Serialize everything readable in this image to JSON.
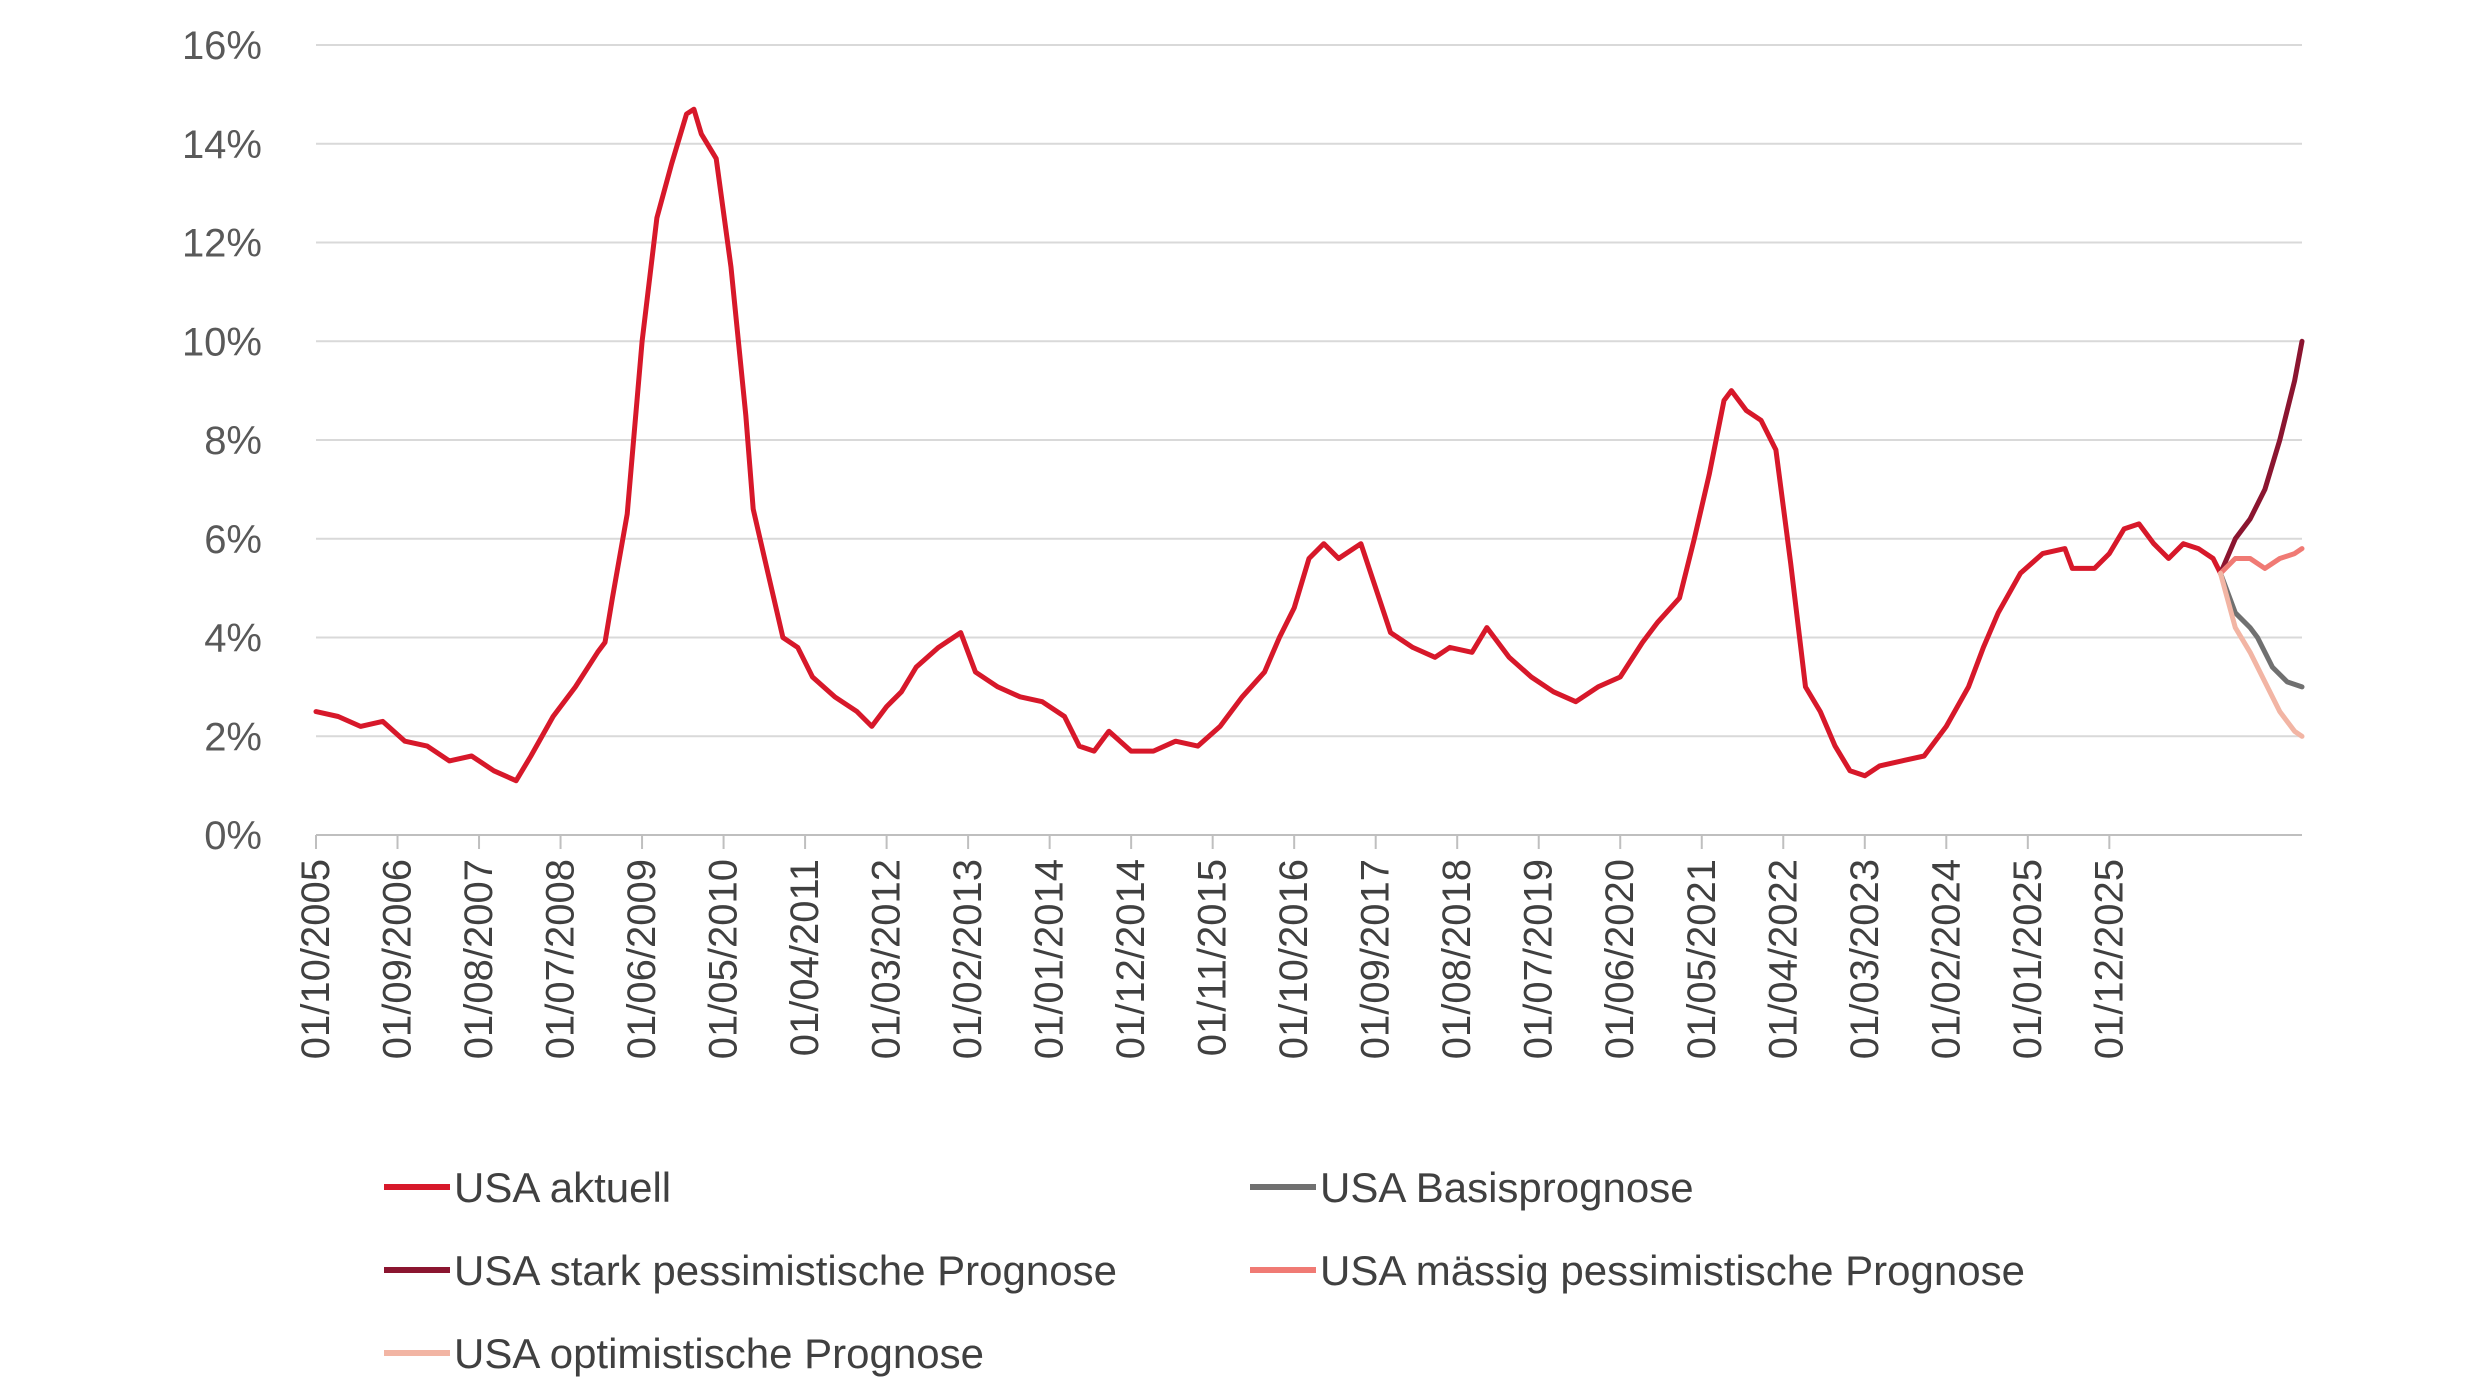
{
  "chart_data": {
    "type": "line",
    "title": "",
    "xlabel": "",
    "ylabel": "",
    "ylim": [
      0,
      16
    ],
    "yticks": [
      "0%",
      "2%",
      "4%",
      "6%",
      "8%",
      "10%",
      "12%",
      "14%",
      "16%"
    ],
    "grid": "horizontal",
    "legend_position": "bottom",
    "xticks": [
      "01/10/2005",
      "01/09/2006",
      "01/08/2007",
      "01/07/2008",
      "01/06/2009",
      "01/05/2010",
      "01/04/2011",
      "01/03/2012",
      "01/02/2013",
      "01/01/2014",
      "01/12/2014",
      "01/11/2015",
      "01/10/2016",
      "01/09/2017",
      "01/08/2018",
      "01/07/2019",
      "01/06/2020",
      "01/05/2021",
      "01/04/2022",
      "01/03/2023",
      "01/02/2024",
      "01/01/2025",
      "01/12/2025"
    ],
    "x_unit": "month",
    "x_start": "2005-10",
    "x_end": "2028-02",
    "series": [
      {
        "name": "USA aktuell",
        "color": "#d7182a",
        "points": [
          [
            "2005-10",
            2.5
          ],
          [
            "2006-01",
            2.4
          ],
          [
            "2006-04",
            2.2
          ],
          [
            "2006-07",
            2.3
          ],
          [
            "2006-10",
            1.9
          ],
          [
            "2007-01",
            1.8
          ],
          [
            "2007-04",
            1.5
          ],
          [
            "2007-07",
            1.6
          ],
          [
            "2007-10",
            1.3
          ],
          [
            "2008-01",
            1.1
          ],
          [
            "2008-03",
            1.6
          ],
          [
            "2008-06",
            2.4
          ],
          [
            "2008-09",
            3.0
          ],
          [
            "2008-12",
            3.7
          ],
          [
            "2009-01",
            3.9
          ],
          [
            "2009-02",
            4.8
          ],
          [
            "2009-04",
            6.5
          ],
          [
            "2009-06",
            10.0
          ],
          [
            "2009-08",
            12.5
          ],
          [
            "2009-10",
            13.6
          ],
          [
            "2009-12",
            14.6
          ],
          [
            "2010-01",
            14.7
          ],
          [
            "2010-02",
            14.2
          ],
          [
            "2010-04",
            13.7
          ],
          [
            "2010-06",
            11.5
          ],
          [
            "2010-08",
            8.5
          ],
          [
            "2010-09",
            6.6
          ],
          [
            "2010-11",
            5.3
          ],
          [
            "2011-01",
            4.0
          ],
          [
            "2011-03",
            3.8
          ],
          [
            "2011-05",
            3.2
          ],
          [
            "2011-08",
            2.8
          ],
          [
            "2011-11",
            2.5
          ],
          [
            "2012-01",
            2.2
          ],
          [
            "2012-03",
            2.6
          ],
          [
            "2012-05",
            2.9
          ],
          [
            "2012-07",
            3.4
          ],
          [
            "2012-10",
            3.8
          ],
          [
            "2013-01",
            4.1
          ],
          [
            "2013-03",
            3.3
          ],
          [
            "2013-06",
            3.0
          ],
          [
            "2013-09",
            2.8
          ],
          [
            "2013-12",
            2.7
          ],
          [
            "2014-03",
            2.4
          ],
          [
            "2014-05",
            1.8
          ],
          [
            "2014-07",
            1.7
          ],
          [
            "2014-09",
            2.1
          ],
          [
            "2014-12",
            1.7
          ],
          [
            "2015-03",
            1.7
          ],
          [
            "2015-06",
            1.9
          ],
          [
            "2015-09",
            1.8
          ],
          [
            "2015-12",
            2.2
          ],
          [
            "2016-03",
            2.8
          ],
          [
            "2016-06",
            3.3
          ],
          [
            "2016-08",
            4.0
          ],
          [
            "2016-10",
            4.6
          ],
          [
            "2016-12",
            5.6
          ],
          [
            "2017-02",
            5.9
          ],
          [
            "2017-04",
            5.6
          ],
          [
            "2017-07",
            5.9
          ],
          [
            "2017-09",
            5.0
          ],
          [
            "2017-11",
            4.1
          ],
          [
            "2018-02",
            3.8
          ],
          [
            "2018-05",
            3.6
          ],
          [
            "2018-07",
            3.8
          ],
          [
            "2018-10",
            3.7
          ],
          [
            "2018-12",
            4.2
          ],
          [
            "2019-03",
            3.6
          ],
          [
            "2019-06",
            3.2
          ],
          [
            "2019-09",
            2.9
          ],
          [
            "2019-12",
            2.7
          ],
          [
            "2020-03",
            3.0
          ],
          [
            "2020-06",
            3.2
          ],
          [
            "2020-09",
            3.9
          ],
          [
            "2020-11",
            4.3
          ],
          [
            "2021-02",
            4.8
          ],
          [
            "2021-04",
            6.0
          ],
          [
            "2021-06",
            7.3
          ],
          [
            "2021-08",
            8.8
          ],
          [
            "2021-09",
            9.0
          ],
          [
            "2021-11",
            8.6
          ],
          [
            "2022-01",
            8.4
          ],
          [
            "2022-03",
            7.8
          ],
          [
            "2022-05",
            5.5
          ],
          [
            "2022-07",
            3.0
          ],
          [
            "2022-09",
            2.5
          ],
          [
            "2022-11",
            1.8
          ],
          [
            "2023-01",
            1.3
          ],
          [
            "2023-03",
            1.2
          ],
          [
            "2023-05",
            1.4
          ],
          [
            "2023-08",
            1.5
          ],
          [
            "2023-11",
            1.6
          ],
          [
            "2024-02",
            2.2
          ],
          [
            "2024-05",
            3.0
          ],
          [
            "2024-07",
            3.8
          ],
          [
            "2024-09",
            4.5
          ],
          [
            "2024-12",
            5.3
          ],
          [
            "2025-03",
            5.7
          ],
          [
            "2025-06",
            5.8
          ],
          [
            "2025-07",
            5.4
          ],
          [
            "2025-10",
            5.4
          ],
          [
            "2025-12",
            5.7
          ],
          [
            "2026-02",
            6.2
          ],
          [
            "2026-04",
            6.3
          ],
          [
            "2026-06",
            5.9
          ],
          [
            "2026-08",
            5.6
          ],
          [
            "2026-10",
            5.9
          ],
          [
            "2026-12",
            5.8
          ],
          [
            "2027-02",
            5.6
          ],
          [
            "2027-03",
            5.3
          ]
        ]
      },
      {
        "name": "USA Basisprognose",
        "color": "#707070",
        "points": [
          [
            "2027-03",
            5.3
          ],
          [
            "2027-05",
            4.5
          ],
          [
            "2027-07",
            4.2
          ],
          [
            "2027-08",
            4.0
          ],
          [
            "2027-10",
            3.4
          ],
          [
            "2027-12",
            3.1
          ],
          [
            "2028-02",
            3.0
          ]
        ]
      },
      {
        "name": "USA stark pessimistische Prognose",
        "color": "#8b1530",
        "points": [
          [
            "2027-03",
            5.3
          ],
          [
            "2027-05",
            6.0
          ],
          [
            "2027-07",
            6.4
          ],
          [
            "2027-09",
            7.0
          ],
          [
            "2027-11",
            8.0
          ],
          [
            "2028-01",
            9.2
          ],
          [
            "2028-02",
            10.0
          ]
        ]
      },
      {
        "name": "USA mässig pessimistische Prognose",
        "color": "#f07a74",
        "points": [
          [
            "2027-03",
            5.3
          ],
          [
            "2027-05",
            5.6
          ],
          [
            "2027-07",
            5.6
          ],
          [
            "2027-09",
            5.4
          ],
          [
            "2027-11",
            5.6
          ],
          [
            "2028-01",
            5.7
          ],
          [
            "2028-02",
            5.8
          ]
        ]
      },
      {
        "name": "USA optimistische Prognose",
        "color": "#f2b5a4",
        "points": [
          [
            "2027-03",
            5.3
          ],
          [
            "2027-05",
            4.2
          ],
          [
            "2027-07",
            3.7
          ],
          [
            "2027-09",
            3.1
          ],
          [
            "2027-11",
            2.5
          ],
          [
            "2028-01",
            2.1
          ],
          [
            "2028-02",
            2.0
          ]
        ]
      }
    ]
  }
}
